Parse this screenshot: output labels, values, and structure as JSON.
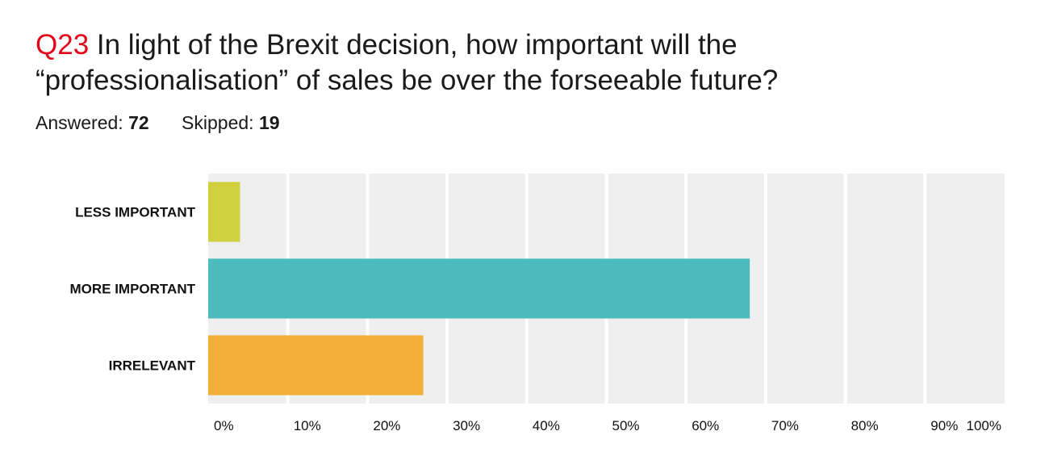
{
  "header": {
    "question_number": "Q23",
    "question_line1": "In light of the Brexit decision, how important will the",
    "question_line2": "“professionalisation” of sales be over the forseeable future?",
    "answered_label": "Answered:",
    "answered_value": "72",
    "skipped_label": "Skipped:",
    "skipped_value": "19"
  },
  "chart_data": {
    "type": "bar",
    "orientation": "horizontal",
    "categories": [
      "LESS IMPORTANT",
      "MORE IMPORTANT",
      "IRRELEVANT"
    ],
    "values": [
      4,
      68,
      27
    ],
    "colors": [
      "#d1d13f",
      "#4bbbbd",
      "#f2ae35"
    ],
    "xlim": [
      0,
      100
    ],
    "xticks": [
      "0%",
      "10%",
      "20%",
      "30%",
      "40%",
      "50%",
      "60%",
      "70%",
      "80%",
      "90%",
      "100%"
    ],
    "background": "#efefef",
    "grid": true,
    "legend": "none",
    "xlabel": "",
    "ylabel": ""
  }
}
